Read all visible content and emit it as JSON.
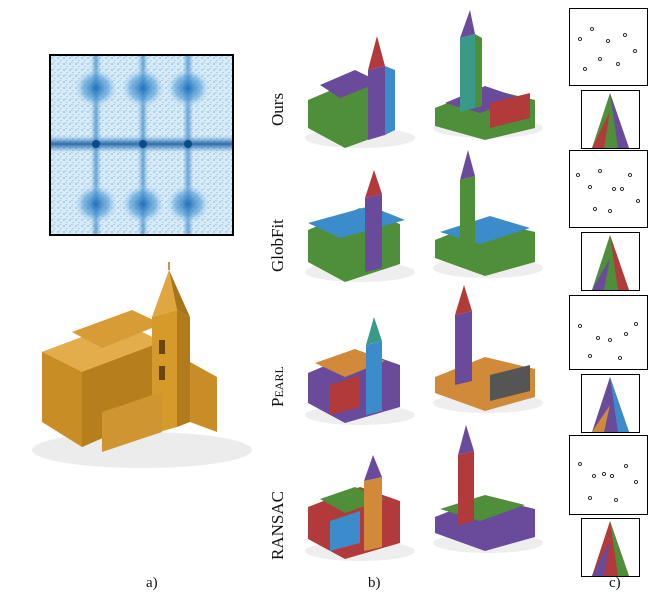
{
  "row_labels": [
    "Ours",
    "GlobFit",
    "PEARL",
    "RANSAC"
  ],
  "panel_labels": {
    "a": "a)",
    "b": "b)",
    "c": "c)"
  },
  "colors": {
    "building_orange": "#d59a2a",
    "density_blue": "#2f7fc4",
    "seg_green": "#4f8f3a",
    "seg_purple": "#6a4a9a",
    "seg_blue": "#3c8ccc",
    "seg_red": "#b23a3a",
    "seg_teal": "#3a9a8a"
  },
  "icons": [
    "density-plot",
    "church-model-render",
    "segmented-church-render",
    "normal-scatter-plot",
    "tower-closeup"
  ]
}
